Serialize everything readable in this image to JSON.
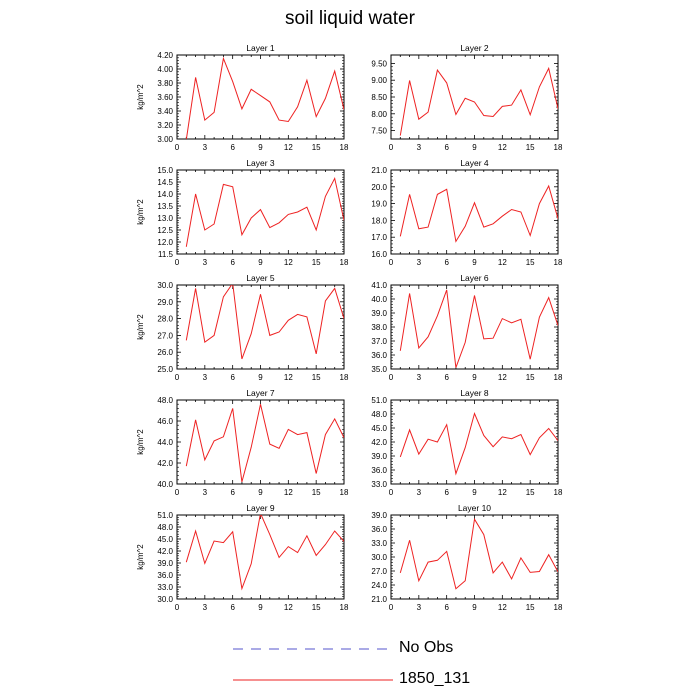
{
  "title": "soil liquid water",
  "legend": {
    "items": [
      {
        "label": "No Obs",
        "color": "#5555cc",
        "style": "dashed"
      },
      {
        "label": "1850_131",
        "color": "#ee2222",
        "style": "solid"
      }
    ]
  },
  "chart_data": [
    {
      "type": "line",
      "title": "Layer 1",
      "ylabel": "kg/m^2",
      "xlim": [
        0,
        18
      ],
      "ylim": [
        3.0,
        4.2
      ],
      "xticks": [
        0,
        3,
        6,
        9,
        12,
        15,
        18
      ],
      "yticks": [
        "3.00",
        "3.20",
        "3.40",
        "3.60",
        "3.80",
        "4.00",
        "4.20"
      ],
      "series": [
        {
          "color": "#ee2222",
          "x": [
            1,
            2,
            3,
            4,
            5,
            6,
            7,
            8,
            9,
            10,
            11,
            12,
            13,
            14,
            15,
            16,
            17,
            18
          ],
          "values": [
            2.99,
            3.88,
            3.27,
            3.38,
            4.15,
            3.82,
            3.43,
            3.71,
            3.62,
            3.53,
            3.27,
            3.25,
            3.46,
            3.84,
            3.32,
            3.58,
            3.97,
            3.42
          ]
        }
      ]
    },
    {
      "type": "line",
      "title": "Layer 2",
      "ylabel": "",
      "xlim": [
        0,
        18
      ],
      "ylim": [
        7.25,
        9.75
      ],
      "xticks": [
        0,
        3,
        6,
        9,
        12,
        15,
        18
      ],
      "yticks": [
        "7.50",
        "8.00",
        "8.50",
        "9.00",
        "9.50"
      ],
      "series": [
        {
          "color": "#ee2222",
          "x": [
            1,
            2,
            3,
            4,
            5,
            6,
            7,
            8,
            9,
            10,
            11,
            12,
            13,
            14,
            15,
            16,
            17,
            18
          ],
          "values": [
            7.35,
            8.99,
            7.84,
            8.05,
            9.3,
            8.92,
            7.98,
            8.46,
            8.35,
            7.95,
            7.92,
            8.22,
            8.26,
            8.71,
            7.97,
            8.8,
            9.35,
            8.15
          ]
        }
      ]
    },
    {
      "type": "line",
      "title": "Layer 3",
      "ylabel": "kg/m^2",
      "xlim": [
        0,
        18
      ],
      "ylim": [
        11.5,
        15.0
      ],
      "xticks": [
        0,
        3,
        6,
        9,
        12,
        15,
        18
      ],
      "yticks": [
        "11.5",
        "12.0",
        "12.5",
        "13.0",
        "13.5",
        "14.0",
        "14.5",
        "15.0"
      ],
      "series": [
        {
          "color": "#ee2222",
          "x": [
            1,
            2,
            3,
            4,
            5,
            6,
            7,
            8,
            9,
            10,
            11,
            12,
            13,
            14,
            15,
            16,
            17,
            18
          ],
          "values": [
            11.8,
            14.0,
            12.5,
            12.75,
            14.4,
            14.3,
            12.3,
            13.0,
            13.35,
            12.6,
            12.8,
            13.15,
            13.25,
            13.45,
            12.5,
            13.9,
            14.65,
            12.9
          ]
        }
      ]
    },
    {
      "type": "line",
      "title": "Layer 4",
      "ylabel": "",
      "xlim": [
        0,
        18
      ],
      "ylim": [
        16.0,
        21.0
      ],
      "xticks": [
        0,
        3,
        6,
        9,
        12,
        15,
        18
      ],
      "yticks": [
        "16.0",
        "17.0",
        "18.0",
        "19.0",
        "20.0",
        "21.0"
      ],
      "series": [
        {
          "color": "#ee2222",
          "x": [
            1,
            2,
            3,
            4,
            5,
            6,
            7,
            8,
            9,
            10,
            11,
            12,
            13,
            14,
            15,
            16,
            17,
            18
          ],
          "values": [
            17.05,
            19.55,
            17.5,
            17.6,
            19.55,
            19.85,
            16.75,
            17.65,
            19.05,
            17.6,
            17.8,
            18.25,
            18.65,
            18.5,
            17.1,
            19.0,
            20.05,
            18.1
          ]
        }
      ]
    },
    {
      "type": "line",
      "title": "Layer 5",
      "ylabel": "kg/m^2",
      "xlim": [
        0,
        18
      ],
      "ylim": [
        25.0,
        30.0
      ],
      "xticks": [
        0,
        3,
        6,
        9,
        12,
        15,
        18
      ],
      "yticks": [
        "25.0",
        "26.0",
        "27.0",
        "28.0",
        "29.0",
        "30.0"
      ],
      "series": [
        {
          "color": "#ee2222",
          "x": [
            1,
            2,
            3,
            4,
            5,
            6,
            7,
            8,
            9,
            10,
            11,
            12,
            13,
            14,
            15,
            16,
            17,
            18
          ],
          "values": [
            26.7,
            29.8,
            26.6,
            27.0,
            29.3,
            30.1,
            25.6,
            27.1,
            29.45,
            27.0,
            27.2,
            27.9,
            28.25,
            28.1,
            25.9,
            29.05,
            29.8,
            28.0
          ]
        }
      ]
    },
    {
      "type": "line",
      "title": "Layer 6",
      "ylabel": "",
      "xlim": [
        0,
        18
      ],
      "ylim": [
        35.0,
        41.0
      ],
      "xticks": [
        0,
        3,
        6,
        9,
        12,
        15,
        18
      ],
      "yticks": [
        "35.0",
        "36.0",
        "37.0",
        "38.0",
        "39.0",
        "40.0",
        "41.0"
      ],
      "series": [
        {
          "color": "#ee2222",
          "x": [
            1,
            2,
            3,
            4,
            5,
            6,
            7,
            8,
            9,
            10,
            11,
            12,
            13,
            14,
            15,
            16,
            17,
            18
          ],
          "values": [
            36.3,
            40.4,
            36.5,
            37.3,
            38.8,
            40.65,
            35.1,
            36.9,
            40.25,
            37.15,
            37.2,
            38.6,
            38.3,
            38.55,
            35.7,
            38.7,
            40.1,
            38.1
          ]
        }
      ]
    },
    {
      "type": "line",
      "title": "Layer 7",
      "ylabel": "kg/m^2",
      "xlim": [
        0,
        18
      ],
      "ylim": [
        40.0,
        48.0
      ],
      "xticks": [
        0,
        3,
        6,
        9,
        12,
        15,
        18
      ],
      "yticks": [
        "40.0",
        "42.0",
        "44.0",
        "46.0",
        "48.0"
      ],
      "series": [
        {
          "color": "#ee2222",
          "x": [
            1,
            2,
            3,
            4,
            5,
            6,
            7,
            8,
            9,
            10,
            11,
            12,
            13,
            14,
            15,
            16,
            17,
            18
          ],
          "values": [
            41.7,
            46.1,
            42.3,
            44.1,
            44.5,
            47.2,
            40.2,
            43.5,
            47.6,
            43.8,
            43.4,
            45.2,
            44.7,
            44.9,
            41.0,
            44.7,
            46.2,
            44.4
          ]
        }
      ]
    },
    {
      "type": "line",
      "title": "Layer 8",
      "ylabel": "",
      "xlim": [
        0,
        18
      ],
      "ylim": [
        33.0,
        51.0
      ],
      "xticks": [
        0,
        3,
        6,
        9,
        12,
        15,
        18
      ],
      "yticks": [
        "33.0",
        "36.0",
        "39.0",
        "42.0",
        "45.0",
        "48.0",
        "51.0"
      ],
      "series": [
        {
          "color": "#ee2222",
          "x": [
            1,
            2,
            3,
            4,
            5,
            6,
            7,
            8,
            9,
            10,
            11,
            12,
            13,
            14,
            15,
            16,
            17,
            18
          ],
          "values": [
            38.8,
            44.6,
            39.4,
            42.6,
            42.0,
            45.7,
            35.2,
            40.8,
            48.1,
            43.4,
            41.0,
            43.1,
            42.7,
            43.6,
            39.3,
            42.9,
            44.9,
            42.3
          ]
        }
      ]
    },
    {
      "type": "line",
      "title": "Layer 9",
      "ylabel": "kg/m^2",
      "xlim": [
        0,
        18
      ],
      "ylim": [
        30.0,
        51.0
      ],
      "xticks": [
        0,
        3,
        6,
        9,
        12,
        15,
        18
      ],
      "yticks": [
        "30.0",
        "33.0",
        "36.0",
        "39.0",
        "42.0",
        "45.0",
        "48.0",
        "51.0"
      ],
      "series": [
        {
          "color": "#ee2222",
          "x": [
            1,
            2,
            3,
            4,
            5,
            6,
            7,
            8,
            9,
            10,
            11,
            12,
            13,
            14,
            15,
            16,
            17,
            18
          ],
          "values": [
            39.2,
            47.0,
            38.9,
            44.5,
            44.1,
            46.8,
            32.6,
            38.8,
            51.4,
            46.1,
            40.4,
            43.1,
            41.6,
            45.8,
            40.9,
            43.6,
            47.0,
            44.4
          ]
        }
      ]
    },
    {
      "type": "line",
      "title": "Layer 10",
      "ylabel": "",
      "xlim": [
        0,
        18
      ],
      "ylim": [
        21.0,
        39.0
      ],
      "xticks": [
        0,
        3,
        6,
        9,
        12,
        15,
        18
      ],
      "yticks": [
        "21.0",
        "24.0",
        "27.0",
        "30.0",
        "33.0",
        "36.0",
        "39.0"
      ],
      "series": [
        {
          "color": "#ee2222",
          "x": [
            1,
            2,
            3,
            4,
            5,
            6,
            7,
            8,
            9,
            10,
            11,
            12,
            13,
            14,
            15,
            16,
            17,
            18
          ],
          "values": [
            26.6,
            33.6,
            24.9,
            28.9,
            29.3,
            31.2,
            23.2,
            24.9,
            38.1,
            34.8,
            26.6,
            28.9,
            25.3,
            29.8,
            26.7,
            26.9,
            30.5,
            26.8
          ]
        }
      ]
    }
  ]
}
